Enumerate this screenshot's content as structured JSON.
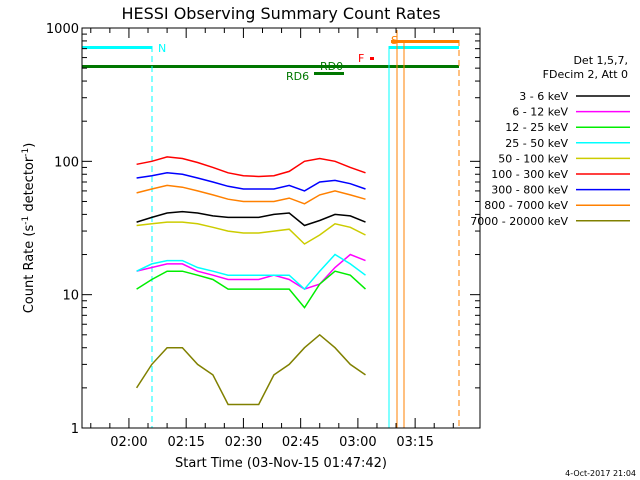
{
  "chart_data": {
    "type": "line",
    "title": "HESSI Observing Summary Count Rates",
    "xlabel": "Start Time (03-Nov-15 01:47:42)",
    "ylabel_main": "Count Rate (s",
    "ylabel_sup1": "-1",
    "ylabel_mid": " detector",
    "ylabel_sup2": "-1",
    "ylabel_end": ")",
    "yscale": "log",
    "ylim": [
      1,
      1000
    ],
    "xlim": [
      107.7,
      212
    ],
    "x_ticks": [
      {
        "label": "02:00",
        "minutes": 120
      },
      {
        "label": "02:15",
        "minutes": 135
      },
      {
        "label": "02:30",
        "minutes": 150
      },
      {
        "label": "02:45",
        "minutes": 165
      },
      {
        "label": "03:00",
        "minutes": 180
      },
      {
        "label": "03:15",
        "minutes": 195
      }
    ],
    "y_ticks": [
      {
        "label": "1",
        "value": 1
      },
      {
        "label": "10",
        "value": 10
      },
      {
        "label": "100",
        "value": 100
      },
      {
        "label": "1000",
        "value": 1000
      }
    ],
    "legend": {
      "placement": "right",
      "header1": "Det 1,5,7,",
      "header2": "FDecim 2, Att 0",
      "items": [
        {
          "label": "3 - 6 keV",
          "color": "#000000"
        },
        {
          "label": "6 - 12 keV",
          "color": "#ff00ff"
        },
        {
          "label": "12 - 25 keV",
          "color": "#00ee00"
        },
        {
          "label": "25 - 50 keV",
          "color": "#00ffff"
        },
        {
          "label": "50 - 100 keV",
          "color": "#cccc00"
        },
        {
          "label": "100 - 300 keV",
          "color": "#ff0000"
        },
        {
          "label": "300 - 800 keV",
          "color": "#0000ff"
        },
        {
          "label": "800 - 7000 keV",
          "color": "#ff8000"
        },
        {
          "label": "7000 - 20000 keV",
          "color": "#808000"
        }
      ]
    },
    "series": [
      {
        "name": "3 - 6 keV",
        "color": "#000000",
        "x": [
          122,
          126,
          130,
          134,
          138,
          142,
          146,
          150,
          154,
          158,
          162,
          166,
          170,
          174,
          178,
          182
        ],
        "y": [
          35,
          38,
          41,
          42,
          41,
          39,
          38,
          38,
          38,
          40,
          41,
          33,
          36,
          40,
          39,
          35
        ]
      },
      {
        "name": "6 - 12 keV",
        "color": "#ff00ff",
        "x": [
          122,
          126,
          130,
          134,
          138,
          142,
          146,
          150,
          154,
          158,
          162,
          166,
          170,
          174,
          178,
          182
        ],
        "y": [
          15,
          16,
          17,
          17,
          15,
          14,
          13,
          13,
          13,
          14,
          13,
          11,
          12,
          16,
          20,
          18
        ]
      },
      {
        "name": "12 - 25 keV",
        "color": "#00ee00",
        "x": [
          122,
          126,
          130,
          134,
          138,
          142,
          146,
          150,
          154,
          158,
          162,
          166,
          170,
          174,
          178,
          182
        ],
        "y": [
          11,
          13,
          15,
          15,
          14,
          13,
          11,
          11,
          11,
          11,
          11,
          8,
          12,
          15,
          14,
          11
        ]
      },
      {
        "name": "25 - 50 keV",
        "color": "#00ffff",
        "x": [
          122,
          126,
          130,
          134,
          138,
          142,
          146,
          150,
          154,
          158,
          162,
          166,
          170,
          174,
          178,
          182
        ],
        "y": [
          15,
          17,
          18,
          18,
          16,
          15,
          14,
          14,
          14,
          14,
          14,
          11,
          15,
          20,
          17,
          14
        ]
      },
      {
        "name": "50 - 100 keV",
        "color": "#cccc00",
        "x": [
          122,
          126,
          130,
          134,
          138,
          142,
          146,
          150,
          154,
          158,
          162,
          166,
          170,
          174,
          178,
          182
        ],
        "y": [
          33,
          34,
          35,
          35,
          34,
          32,
          30,
          29,
          29,
          30,
          31,
          24,
          28,
          34,
          32,
          28
        ]
      },
      {
        "name": "100 - 300 keV",
        "color": "#ff0000",
        "x": [
          122,
          126,
          130,
          134,
          138,
          142,
          146,
          150,
          154,
          158,
          162,
          166,
          170,
          174,
          178,
          182
        ],
        "y": [
          95,
          100,
          108,
          105,
          98,
          90,
          82,
          78,
          77,
          78,
          84,
          100,
          105,
          100,
          90,
          82
        ]
      },
      {
        "name": "300 - 800 keV",
        "color": "#0000ff",
        "x": [
          122,
          126,
          130,
          134,
          138,
          142,
          146,
          150,
          154,
          158,
          162,
          166,
          170,
          174,
          178,
          182
        ],
        "y": [
          75,
          78,
          82,
          80,
          75,
          70,
          65,
          62,
          62,
          62,
          66,
          60,
          70,
          72,
          68,
          62
        ]
      },
      {
        "name": "800 - 7000 keV",
        "color": "#ff8000",
        "x": [
          122,
          126,
          130,
          134,
          138,
          142,
          146,
          150,
          154,
          158,
          162,
          166,
          170,
          174,
          178,
          182
        ],
        "y": [
          58,
          62,
          66,
          64,
          60,
          56,
          52,
          50,
          50,
          50,
          53,
          48,
          56,
          60,
          56,
          52
        ]
      },
      {
        "name": "7000 - 20000 keV",
        "color": "#808000",
        "x": [
          122,
          126,
          130,
          134,
          138,
          142,
          146,
          150,
          154,
          158,
          162,
          166,
          170,
          174,
          178,
          182
        ],
        "y": [
          2,
          3,
          4,
          4,
          3,
          2.5,
          1.5,
          1.5,
          1.5,
          2.5,
          3,
          4,
          5,
          4,
          3,
          2.5
        ]
      }
    ],
    "annotations": [
      {
        "text": "N",
        "color": "#00ffff"
      },
      {
        "text": "RD6",
        "color": "#007700"
      },
      {
        "text": "RD0",
        "color": "#007700"
      },
      {
        "text": "F",
        "color": "#ff0000"
      },
      {
        "text": "S",
        "color": "#ff8000"
      }
    ],
    "footer_date": "4-Oct-2017 21:04"
  }
}
